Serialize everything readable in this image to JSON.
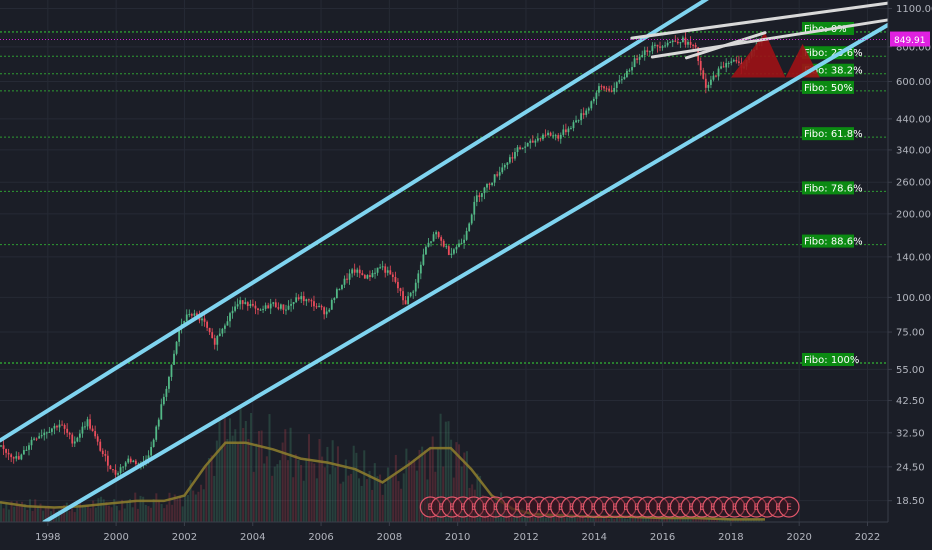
{
  "chart_data": {
    "type": "candlestick",
    "y_scale": "log",
    "ylim": [
      15.5,
      1180
    ],
    "xlim": [
      1996.6,
      2022.6
    ],
    "colors": {
      "background": "#1b1e27",
      "up": "#53b987",
      "down": "#eb4d5c",
      "channel": "#7fd4f0",
      "wedge": "#d9d9d9",
      "fibo_line": "#2e9c32",
      "fibo_label_bg": "#0b8a12",
      "volume_ma": "#8a7a2e",
      "price_tag": "#e020e0",
      "triangle": "#9e1116",
      "event": "#e0566a"
    },
    "y_ticks": [
      "1100.00",
      "800.00",
      "600.00",
      "440.00",
      "340.00",
      "260.00",
      "200.00",
      "140.00",
      "100.00",
      "75.00",
      "55.00",
      "42.50",
      "32.50",
      "24.50",
      "18.50"
    ],
    "x_ticks": [
      "1998",
      "2000",
      "2002",
      "2004",
      "2006",
      "2008",
      "2010",
      "2012",
      "2014",
      "2016",
      "2018",
      "2020",
      "2022"
    ],
    "x_tick_values": [
      1998,
      2000,
      2002,
      2004,
      2006,
      2008,
      2010,
      2012,
      2014,
      2016,
      2018,
      2020,
      2022
    ],
    "current_price": "849.91",
    "fibonacci": [
      {
        "label": "Fibo:   0%",
        "value": 905
      },
      {
        "label": "Fibo: 23.6%",
        "value": 740
      },
      {
        "label": "Fibo: 38.2%",
        "value": 640
      },
      {
        "label": "Fibo:   50%",
        "value": 555
      },
      {
        "label": "Fibo: 61.8%",
        "value": 378
      },
      {
        "label": "Fibo: 78.6%",
        "value": 241
      },
      {
        "label": "Fibo: 88.6%",
        "value": 155
      },
      {
        "label": "Fibo: 100%",
        "value": 58
      }
    ],
    "channel_lines": [
      {
        "x": [
          1996.6,
          2017.3
        ],
        "y": [
          30.5,
          1190
        ]
      },
      {
        "x": [
          1997.9,
          2022.6
        ],
        "y": [
          15.5,
          960
        ]
      }
    ],
    "wedge_lines": [
      {
        "x": [
          2015.1,
          2022.6
        ],
        "y": [
          860,
          1150
        ]
      },
      {
        "x": [
          2015.7,
          2022.6
        ],
        "y": [
          735,
          1000
        ]
      },
      {
        "x": [
          2016.7,
          2019.0
        ],
        "y": [
          730,
          900
        ]
      }
    ],
    "triangles": [
      {
        "x": [
          2018.0,
          2019.0,
          2019.6
        ],
        "y": [
          620,
          900,
          620
        ]
      },
      {
        "x": [
          2019.6,
          2020.1,
          2020.6
        ],
        "y": [
          620,
          820,
          620
        ]
      }
    ],
    "price_series": {
      "x": [
        1996.6,
        1997.2,
        1997.6,
        1998.0,
        1998.4,
        1998.8,
        1999.2,
        1999.6,
        2000.0,
        2000.4,
        2000.8,
        2001.1,
        2001.4,
        2001.7,
        2001.9,
        2002.2,
        2002.6,
        2002.9,
        2003.2,
        2003.5,
        2003.8,
        2004.2,
        2004.6,
        2005.0,
        2005.4,
        2005.8,
        2006.2,
        2006.6,
        2007.0,
        2007.4,
        2007.8,
        2008.2,
        2008.5,
        2008.8,
        2009.1,
        2009.4,
        2009.8,
        2010.2,
        2010.6,
        2011.0,
        2011.4,
        2011.8,
        2012.2,
        2012.6,
        2013.0,
        2013.4,
        2013.8,
        2014.2,
        2014.6,
        2015.0,
        2015.4,
        2015.8,
        2016.2,
        2016.6,
        2017.0,
        2017.3,
        2017.6,
        2018.0,
        2018.4,
        2018.8,
        2018.95
      ],
      "y": [
        29,
        26,
        31,
        33,
        35,
        30,
        36,
        28,
        23,
        26,
        25,
        29,
        42,
        58,
        78,
        88,
        82,
        68,
        80,
        92,
        98,
        88,
        95,
        91,
        100,
        95,
        88,
        110,
        125,
        118,
        130,
        115,
        95,
        110,
        150,
        170,
        145,
        160,
        230,
        260,
        300,
        340,
        360,
        390,
        380,
        420,
        470,
        570,
        560,
        650,
        760,
        800,
        830,
        850,
        790,
        560,
        640,
        720,
        680,
        820,
        850
      ]
    },
    "volume_ma": {
      "x": [
        1996.6,
        1997.4,
        1998.2,
        1999.0,
        1999.8,
        2000.6,
        2001.4,
        2002.0,
        2002.6,
        2003.2,
        2003.8,
        2004.6,
        2005.4,
        2006.2,
        2007.0,
        2007.8,
        2008.6,
        2009.2,
        2009.8,
        2010.4,
        2011.0,
        2011.6,
        2012.2,
        2013.0,
        2014.0,
        2015.0,
        2016.0,
        2017.0,
        2018.0,
        2019.0
      ],
      "level": [
        0.15,
        0.12,
        0.11,
        0.12,
        0.14,
        0.16,
        0.16,
        0.2,
        0.42,
        0.6,
        0.6,
        0.55,
        0.48,
        0.45,
        0.4,
        0.3,
        0.44,
        0.56,
        0.56,
        0.4,
        0.2,
        0.1,
        0.06,
        0.05,
        0.04,
        0.04,
        0.03,
        0.03,
        0.02,
        0.02
      ]
    },
    "event_markers": {
      "label": "E",
      "count": 34,
      "x_start": 2009.2,
      "x_end": 2019.7
    }
  }
}
